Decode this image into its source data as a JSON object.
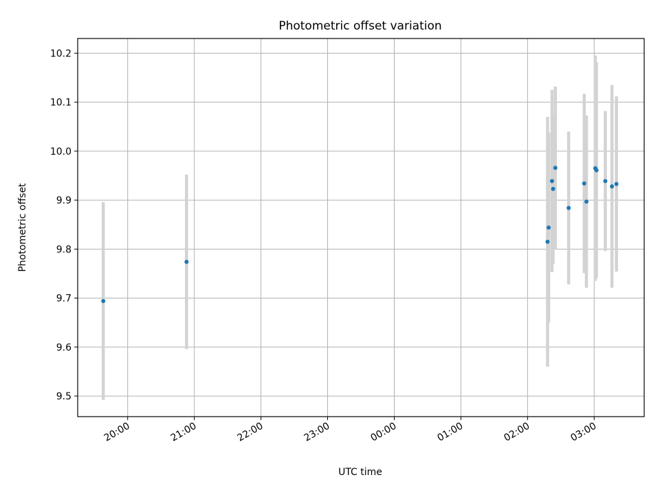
{
  "chart_data": {
    "type": "scatter",
    "title": "Photometric offset variation",
    "xlabel": "UTC time",
    "ylabel": "Photometric offset",
    "x_ticks": [
      {
        "value": "20:00",
        "label": "20:00"
      },
      {
        "value": "21:00",
        "label": "21:00"
      },
      {
        "value": "22:00",
        "label": "22:00"
      },
      {
        "value": "23:00",
        "label": "23:00"
      },
      {
        "value": "00:00",
        "label": "00:00"
      },
      {
        "value": "01:00",
        "label": "01:00"
      },
      {
        "value": "02:00",
        "label": "02:00"
      },
      {
        "value": "03:00",
        "label": "03:00"
      }
    ],
    "y_ticks": [
      {
        "value": 9.5,
        "label": "9.5"
      },
      {
        "value": 9.6,
        "label": "9.6"
      },
      {
        "value": 9.7,
        "label": "9.7"
      },
      {
        "value": 9.8,
        "label": "9.8"
      },
      {
        "value": 9.9,
        "label": "9.9"
      },
      {
        "value": 10.0,
        "label": "10.0"
      },
      {
        "value": 10.1,
        "label": "10.1"
      },
      {
        "value": 10.2,
        "label": "10.2"
      }
    ],
    "xlim": [
      "19:15",
      "03:45"
    ],
    "ylim": [
      9.458,
      10.23
    ],
    "grid": true,
    "point_color": "#1f77b4",
    "errorbar_color": "#d3d3d3",
    "points": [
      {
        "x": "19:38",
        "y": 9.694,
        "err": 0.202
      },
      {
        "x": "20:53",
        "y": 9.774,
        "err": 0.178
      },
      {
        "x": "02:18",
        "y": 9.815,
        "err": 0.255
      },
      {
        "x": "02:19",
        "y": 9.844,
        "err": 0.194
      },
      {
        "x": "02:22",
        "y": 9.939,
        "err": 0.186
      },
      {
        "x": "02:23",
        "y": 9.923,
        "err": 0.153
      },
      {
        "x": "02:25",
        "y": 9.966,
        "err": 0.166
      },
      {
        "x": "02:37",
        "y": 9.884,
        "err": 0.156
      },
      {
        "x": "02:51",
        "y": 9.934,
        "err": 0.183
      },
      {
        "x": "02:53",
        "y": 9.897,
        "err": 0.176
      },
      {
        "x": "03:01",
        "y": 9.965,
        "err": 0.23
      },
      {
        "x": "03:02",
        "y": 9.961,
        "err": 0.22
      },
      {
        "x": "03:10",
        "y": 9.939,
        "err": 0.143
      },
      {
        "x": "03:16",
        "y": 9.928,
        "err": 0.207
      },
      {
        "x": "03:20",
        "y": 9.933,
        "err": 0.179
      }
    ]
  }
}
